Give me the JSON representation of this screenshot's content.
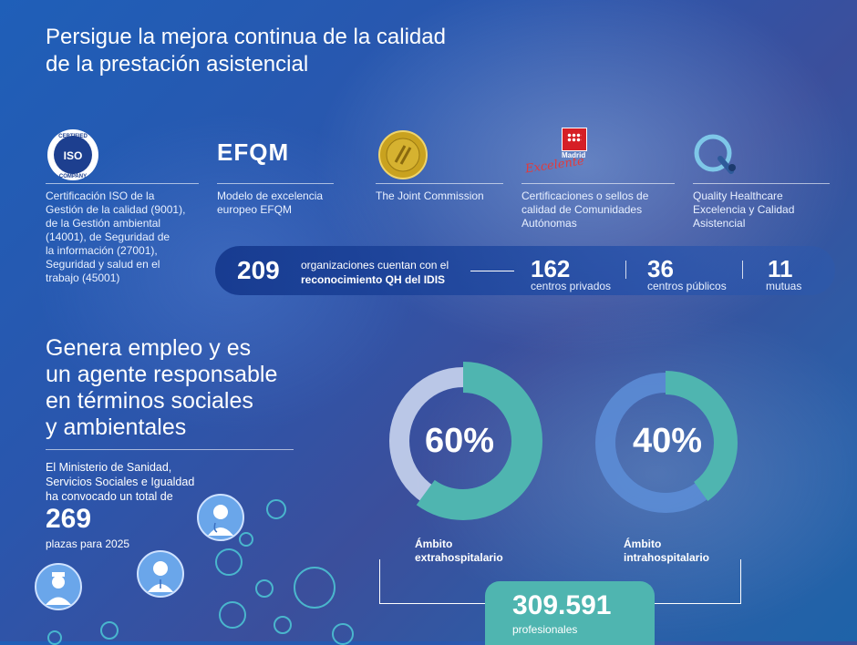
{
  "section1": {
    "title_line1": "Persigue la mejora continua de la calidad",
    "title_line2": "de la prestación asistencial"
  },
  "logos": {
    "iso": {
      "top_text": "CERTIFIED",
      "center_text": "ISO",
      "bottom_text": "COMPANY"
    },
    "efqm": {
      "text": "EFQM"
    },
    "madrid": {
      "text": "Madrid",
      "script": "Excelente"
    },
    "qh": {
      "text": "QH"
    }
  },
  "certifications": [
    {
      "caption": [
        "Certificación ISO de la",
        "Gestión de la calidad (9001),",
        "de la Gestión ambiental",
        "(14001), de Seguridad de",
        "la información (27001),",
        "Seguridad y salud en el",
        "trabajo (45001)"
      ]
    },
    {
      "caption": [
        "Modelo de excelencia",
        "europeo EFQM"
      ]
    },
    {
      "caption": [
        "The Joint Commission"
      ]
    },
    {
      "caption": [
        "Certificaciones o sellos de",
        "calidad de Comunidades",
        "Autónomas"
      ]
    },
    {
      "caption": [
        "Quality Healthcare",
        "Excelencia y Calidad",
        "Asistencial"
      ]
    }
  ],
  "qh_band": {
    "total": "209",
    "text_line1": "organizaciones cuentan con el",
    "text_line2": "reconocimiento QH del IDIS",
    "stats": [
      {
        "value": "162",
        "label": "centros privados"
      },
      {
        "value": "36",
        "label": "centros públicos"
      },
      {
        "value": "11",
        "label": "mutuas"
      }
    ]
  },
  "section2": {
    "title_lines": [
      "Genera empleo y es",
      "un agente responsable",
      "en términos sociales",
      "y ambientales"
    ],
    "ministry_lines": [
      "El Ministerio de Sanidad,",
      "Servicios Sociales e Igualdad",
      "ha convocado un total de"
    ],
    "places_value": "269",
    "places_label": "plazas para 2025"
  },
  "donuts": [
    {
      "value": 60,
      "pct_text": "60%",
      "label_line1": "Ámbito",
      "label_line2": "extrahospitalario"
    },
    {
      "value": 40,
      "pct_text": "40%",
      "label_line1": "Ámbito",
      "label_line2": "intrahospitalario"
    }
  ],
  "professionals": {
    "value": "309.591",
    "label": "profesionales"
  },
  "colors": {
    "teal": "#4fb5b0",
    "ring_light": "#c9d4ee",
    "ring_blue": "#5d8ed8"
  }
}
